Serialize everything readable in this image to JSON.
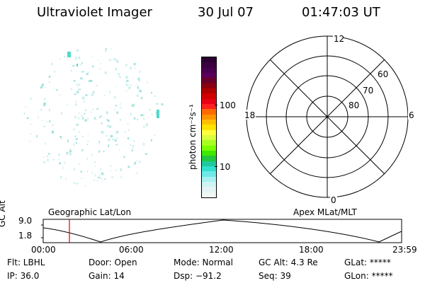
{
  "header": {
    "title": "Ultraviolet Imager",
    "date": "30 Jul 07",
    "time": "01:47:03 UT"
  },
  "colorbar": {
    "label": "photon cm⁻²s⁻¹",
    "ticks": [
      "100",
      "10"
    ],
    "colors": [
      "#2a0033",
      "#3b0040",
      "#4a0050",
      "#5a005a",
      "#6a0028",
      "#8a0010",
      "#b00000",
      "#d00000",
      "#e80018",
      "#ff2020",
      "#ff6a00",
      "#ff9400",
      "#ffbf00",
      "#ffe300",
      "#ffff40",
      "#d8ff40",
      "#a8ff20",
      "#78ff00",
      "#40e800",
      "#20c840",
      "#20c8a0",
      "#30e0d0",
      "#70e8e8",
      "#a8f0f0",
      "#d0f4f4",
      "#e4f4f4",
      "#f0f6f6"
    ]
  },
  "polar": {
    "hour_labels": [
      "12",
      "18",
      "6",
      "0"
    ],
    "lat_labels": [
      "60",
      "70",
      "80"
    ]
  },
  "altitude_plot": {
    "ylabel": "GC Alt",
    "yticks": [
      "9.0",
      "1.8"
    ],
    "left_label": "Geographic Lat/Lon",
    "right_label": "Apex MLat/MLT",
    "xticks": [
      "00:00",
      "06:00",
      "12:00",
      "18:00",
      "23:59"
    ],
    "marker_color": "#dd0000"
  },
  "info": {
    "row1": {
      "filter": "Flt: LBHL",
      "door": "Door: Open",
      "mode": "Mode: Normal",
      "gc_alt": "GC Alt: 4.3 Re",
      "glat": "GLat: *****"
    },
    "row2": {
      "ip": "IP: 36.0",
      "gain": "Gain: 14",
      "dsp": "Dsp:  −91.2",
      "seq": "Seq: 39",
      "glon": "GLon: *****"
    }
  }
}
